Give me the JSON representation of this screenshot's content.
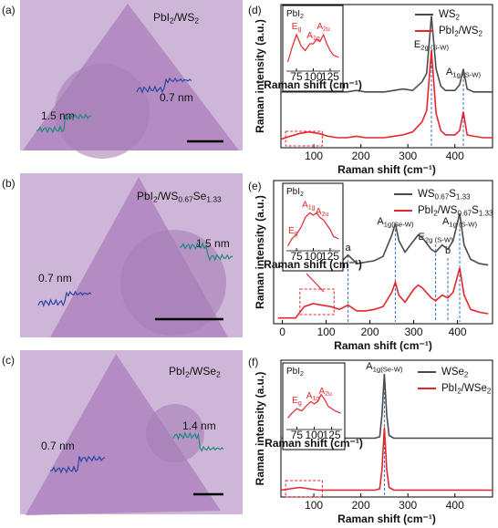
{
  "images": [
    {
      "panel": "(a)",
      "sample": [
        "PbI",
        "2",
        "/WS",
        "2"
      ],
      "steps": [
        "1.5 nm",
        "0.7 nm"
      ]
    },
    {
      "panel": "(b)",
      "sample": [
        "PbI",
        "2",
        "/WS",
        "0.67",
        "Se",
        "1.33"
      ],
      "steps": [
        "1.5 nm",
        "0.7 nm"
      ]
    },
    {
      "panel": "(c)",
      "sample": [
        "PbI",
        "2",
        "/WSe",
        "2"
      ],
      "steps": [
        "0.7 nm",
        "1.4 nm"
      ]
    }
  ],
  "chart_data": [
    {
      "type": "line",
      "panel": "(d)",
      "xlabel": "Raman shift (cm⁻¹)",
      "ylabel": "Raman intensity (a.u.)",
      "x": [
        30,
        50,
        70,
        90,
        110,
        130,
        150,
        170,
        190,
        210,
        230,
        250,
        270,
        290,
        310,
        330,
        340,
        350,
        360,
        370,
        380,
        400,
        410,
        418,
        426,
        440,
        460,
        480
      ],
      "xlim": [
        30,
        480
      ],
      "xticks": [
        100,
        200,
        300,
        400
      ],
      "ylim": [
        0,
        1
      ],
      "series": [
        {
          "name": [
            "WS",
            "2"
          ],
          "color": "#4a4a4a",
          "values": [
            0.39,
            0.39,
            0.39,
            0.39,
            0.39,
            0.39,
            0.39,
            0.39,
            0.4,
            0.39,
            0.39,
            0.39,
            0.4,
            0.41,
            0.4,
            0.46,
            0.52,
            0.92,
            0.55,
            0.43,
            0.4,
            0.4,
            0.44,
            0.55,
            0.41,
            0.39,
            0.39,
            0.39
          ]
        },
        {
          "name": [
            "PbI",
            "2",
            "/WS",
            "2"
          ],
          "color": "#e3262b",
          "values": [
            0.06,
            0.08,
            0.1,
            0.11,
            0.1,
            0.08,
            0.07,
            0.07,
            0.08,
            0.07,
            0.07,
            0.07,
            0.08,
            0.09,
            0.11,
            0.18,
            0.26,
            0.68,
            0.24,
            0.12,
            0.09,
            0.09,
            0.12,
            0.25,
            0.09,
            0.08,
            0.07,
            0.07
          ]
        }
      ],
      "peaks": [
        {
          "x": 350,
          "label": [
            "E",
            "2g (S-W)"
          ]
        },
        {
          "x": 418,
          "label": [
            "A",
            "1g (S-W)"
          ]
        }
      ],
      "inset": {
        "title": [
          "PbI",
          "2"
        ],
        "xlabel": "Raman shift (cm⁻¹)",
        "x": [
          62,
          68,
          75,
          82,
          88,
          95,
          100,
          105,
          110,
          115,
          120,
          125,
          130,
          138
        ],
        "values": [
          0.2,
          0.5,
          0.8,
          0.55,
          0.45,
          0.6,
          0.6,
          0.7,
          0.65,
          0.8,
          0.6,
          0.45,
          0.35,
          0.3
        ],
        "xlim": [
          60,
          140
        ],
        "xticks": [
          75,
          100,
          125
        ],
        "ylim": [
          0,
          1
        ],
        "color": "#e3262b",
        "peaks": [
          {
            "x": 75,
            "label": [
              "E",
              "g"
            ]
          },
          {
            "x": 100,
            "label": [
              "A",
              "1g"
            ]
          },
          {
            "x": 115,
            "label": [
              "A",
              "2u"
            ]
          }
        ]
      }
    },
    {
      "type": "line",
      "panel": "(e)",
      "xlabel": "Raman shift (cm⁻¹)",
      "ylabel": "Raman intensity (a.u.)",
      "x": [
        -10,
        10,
        30,
        50,
        70,
        90,
        110,
        130,
        150,
        170,
        190,
        210,
        230,
        250,
        258,
        266,
        280,
        300,
        310,
        320,
        340,
        350,
        365,
        378,
        390,
        405,
        415,
        430,
        450,
        470
      ],
      "xlim": [
        -20,
        480
      ],
      "xticks": [
        0,
        100,
        200,
        300,
        400
      ],
      "ylim": [
        0,
        1
      ],
      "series": [
        {
          "name": [
            "WS",
            "0.67",
            "S",
            "1.33"
          ],
          "color": "#4a4a4a",
          "values": [
            0.4,
            0.4,
            0.4,
            0.4,
            0.4,
            0.42,
            0.42,
            0.42,
            0.48,
            0.42,
            0.43,
            0.44,
            0.47,
            0.62,
            0.7,
            0.58,
            0.5,
            0.58,
            0.62,
            0.6,
            0.52,
            0.5,
            0.55,
            0.52,
            0.58,
            0.77,
            0.55,
            0.45,
            0.42,
            0.41
          ]
        },
        {
          "name": [
            "PbI",
            "2",
            "/WS",
            "0.67",
            "S",
            "1.33"
          ],
          "color": "#e3262b",
          "values": [
            0.04,
            0.04,
            0.04,
            0.12,
            0.14,
            0.13,
            0.12,
            0.1,
            0.13,
            0.09,
            0.09,
            0.1,
            0.12,
            0.22,
            0.29,
            0.2,
            0.15,
            0.24,
            0.27,
            0.25,
            0.18,
            0.16,
            0.2,
            0.18,
            0.22,
            0.39,
            0.2,
            0.1,
            0.08,
            0.07
          ]
        }
      ],
      "peaks": [
        {
          "x": 150,
          "label": [
            "a"
          ]
        },
        {
          "x": 258,
          "label": [
            "A",
            "1g(Se-W)"
          ]
        },
        {
          "x": 350,
          "label": [
            "E",
            "2g (S-W)"
          ]
        },
        {
          "x": 378,
          "label": [
            "b"
          ]
        },
        {
          "x": 405,
          "label": [
            "A",
            "1g (S-W)"
          ]
        }
      ],
      "inset": {
        "title": [
          "PbI",
          "2"
        ],
        "xlabel": "Raman shift (cm⁻¹)",
        "x": [
          62,
          68,
          75,
          82,
          88,
          95,
          100,
          105,
          110,
          115,
          120,
          125,
          130,
          138
        ],
        "values": [
          0.1,
          0.25,
          0.35,
          0.5,
          0.7,
          0.8,
          0.75,
          0.8,
          0.7,
          0.65,
          0.55,
          0.45,
          0.3,
          0.25
        ],
        "xlim": [
          60,
          140
        ],
        "xticks": [
          75,
          100,
          125
        ],
        "ylim": [
          0,
          1
        ],
        "color": "#e3262b",
        "peaks": [
          {
            "x": 70,
            "label": [
              "E",
              "g"
            ]
          },
          {
            "x": 93,
            "label": [
              "A",
              "1g"
            ]
          },
          {
            "x": 113,
            "label": [
              "A",
              "2u"
            ]
          }
        ]
      }
    },
    {
      "type": "line",
      "panel": "(f)",
      "xlabel": "Raman shift (cm⁻¹)",
      "ylabel": "Raman intensity (a.u.)",
      "x": [
        30,
        50,
        70,
        90,
        110,
        130,
        150,
        170,
        190,
        210,
        230,
        240,
        245,
        250,
        255,
        260,
        270,
        290,
        310,
        330,
        350,
        370,
        390,
        410,
        430,
        450,
        470,
        480
      ],
      "xlim": [
        30,
        480
      ],
      "xticks": [
        100,
        200,
        300,
        400
      ],
      "ylim": [
        0,
        1
      ],
      "series": [
        {
          "name": [
            "WSe",
            "2"
          ],
          "color": "#4a4a4a",
          "values": [
            0.43,
            0.43,
            0.43,
            0.43,
            0.43,
            0.43,
            0.43,
            0.43,
            0.43,
            0.43,
            0.43,
            0.44,
            0.6,
            0.9,
            0.6,
            0.45,
            0.43,
            0.43,
            0.43,
            0.43,
            0.43,
            0.43,
            0.43,
            0.43,
            0.43,
            0.43,
            0.43,
            0.43
          ]
        },
        {
          "name": [
            "PbI",
            "2",
            "/WSe",
            "2"
          ],
          "color": "#e3262b",
          "values": [
            0.05,
            0.06,
            0.07,
            0.06,
            0.05,
            0.05,
            0.05,
            0.05,
            0.05,
            0.05,
            0.05,
            0.06,
            0.2,
            0.51,
            0.2,
            0.07,
            0.05,
            0.05,
            0.05,
            0.05,
            0.05,
            0.05,
            0.05,
            0.05,
            0.05,
            0.05,
            0.05,
            0.05
          ]
        }
      ],
      "peaks": [
        {
          "x": 250,
          "label": [
            "A",
            "1g(Se-W)"
          ]
        }
      ],
      "inset": {
        "title": [
          "PbI",
          "2"
        ],
        "xlabel": "Raman shift (cm⁻¹)",
        "x": [
          62,
          68,
          75,
          82,
          88,
          95,
          100,
          105,
          110,
          115,
          120,
          125,
          130,
          138
        ],
        "values": [
          0.25,
          0.35,
          0.45,
          0.4,
          0.5,
          0.6,
          0.55,
          0.6,
          0.75,
          0.65,
          0.5,
          0.45,
          0.4,
          0.35
        ],
        "xlim": [
          60,
          140
        ],
        "xticks": [
          75,
          100,
          125
        ],
        "ylim": [
          0,
          1
        ],
        "color": "#e3262b",
        "peaks": [
          {
            "x": 75,
            "label": [
              "E",
              "g"
            ]
          },
          {
            "x": 98,
            "label": [
              "A",
              "1g"
            ]
          },
          {
            "x": 116,
            "label": [
              "A",
              "2u"
            ]
          }
        ]
      }
    }
  ]
}
